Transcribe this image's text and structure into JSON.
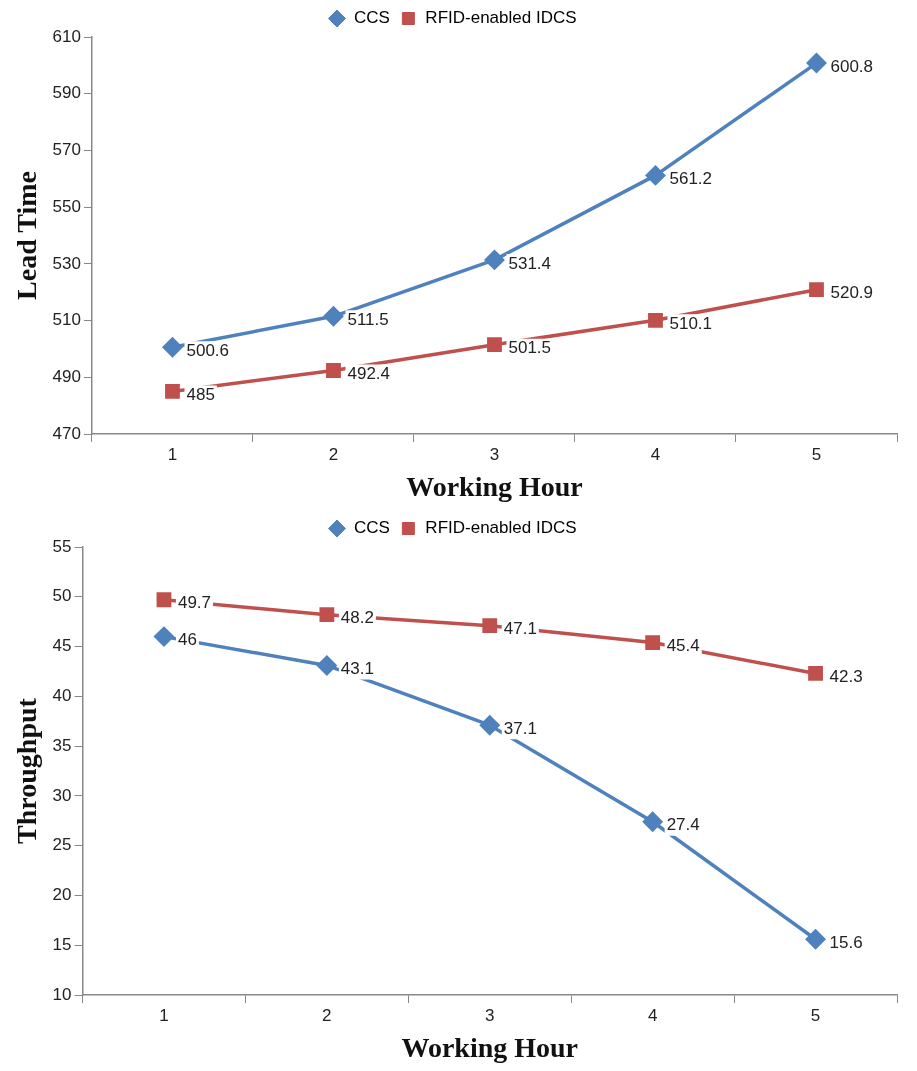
{
  "chart_data": [
    {
      "type": "line",
      "xlabel": "Working Hour",
      "ylabel": "Lead Time",
      "categories": [
        "1",
        "2",
        "3",
        "4",
        "5"
      ],
      "series": [
        {
          "name": "CCS",
          "color": "#4f81bd",
          "marker": "diamond",
          "values": [
            500.6,
            511.5,
            531.4,
            561.2,
            600.8
          ]
        },
        {
          "name": "RFID-enabled IDCS",
          "color": "#c0504d",
          "marker": "square",
          "values": [
            485,
            492.4,
            501.5,
            510.1,
            520.9
          ]
        }
      ],
      "ylim": [
        470,
        610
      ],
      "yticks": [
        470,
        490,
        510,
        530,
        550,
        570,
        590,
        610
      ],
      "grid": false,
      "legend": "top",
      "data_labels": true,
      "line_style": "solid"
    },
    {
      "type": "line",
      "xlabel": "Working Hour",
      "ylabel": "Throughput",
      "categories": [
        "1",
        "2",
        "3",
        "4",
        "5"
      ],
      "series": [
        {
          "name": "CCS",
          "color": "#4f81bd",
          "marker": "diamond",
          "values": [
            46,
            43.1,
            37.1,
            27.4,
            15.6
          ]
        },
        {
          "name": "RFID-enabled IDCS",
          "color": "#c0504d",
          "marker": "square",
          "values": [
            49.7,
            48.2,
            47.1,
            45.4,
            42.3
          ]
        }
      ],
      "ylim": [
        10,
        55
      ],
      "yticks": [
        10,
        15,
        20,
        25,
        30,
        35,
        40,
        45,
        50,
        55
      ],
      "grid": false,
      "legend": "top",
      "data_labels": true,
      "line_style": "solid"
    }
  ]
}
